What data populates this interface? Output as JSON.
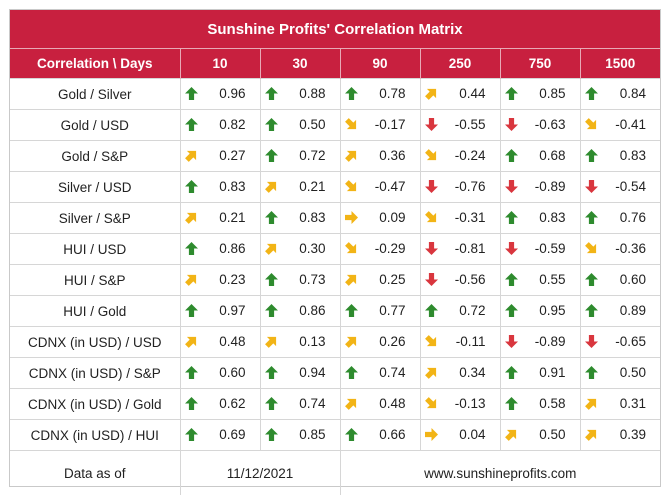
{
  "title": "Sunshine Profits' Correlation Matrix",
  "header": {
    "label": "Correlation \\ Days",
    "days": [
      "10",
      "30",
      "90",
      "250",
      "750",
      "1500"
    ]
  },
  "rows": [
    {
      "pair": "Gold / Silver",
      "cells": [
        {
          "dir": "up",
          "value": "0.96"
        },
        {
          "dir": "up",
          "value": "0.88"
        },
        {
          "dir": "up",
          "value": "0.78"
        },
        {
          "dir": "upright",
          "value": "0.44"
        },
        {
          "dir": "up",
          "value": "0.85"
        },
        {
          "dir": "up",
          "value": "0.84"
        }
      ]
    },
    {
      "pair": "Gold / USD",
      "cells": [
        {
          "dir": "up",
          "value": "0.82"
        },
        {
          "dir": "up",
          "value": "0.50"
        },
        {
          "dir": "downright",
          "value": "-0.17"
        },
        {
          "dir": "down",
          "value": "-0.55"
        },
        {
          "dir": "down",
          "value": "-0.63"
        },
        {
          "dir": "downright",
          "value": "-0.41"
        }
      ]
    },
    {
      "pair": "Gold / S&P",
      "cells": [
        {
          "dir": "upright",
          "value": "0.27"
        },
        {
          "dir": "up",
          "value": "0.72"
        },
        {
          "dir": "upright",
          "value": "0.36"
        },
        {
          "dir": "downright",
          "value": "-0.24"
        },
        {
          "dir": "up",
          "value": "0.68"
        },
        {
          "dir": "up",
          "value": "0.83"
        }
      ]
    },
    {
      "pair": "Silver / USD",
      "cells": [
        {
          "dir": "up",
          "value": "0.83"
        },
        {
          "dir": "upright",
          "value": "0.21"
        },
        {
          "dir": "downright",
          "value": "-0.47"
        },
        {
          "dir": "down",
          "value": "-0.76"
        },
        {
          "dir": "down",
          "value": "-0.89"
        },
        {
          "dir": "down",
          "value": "-0.54"
        }
      ]
    },
    {
      "pair": "Silver / S&P",
      "cells": [
        {
          "dir": "upright",
          "value": "0.21"
        },
        {
          "dir": "up",
          "value": "0.83"
        },
        {
          "dir": "right",
          "value": "0.09"
        },
        {
          "dir": "downright",
          "value": "-0.31"
        },
        {
          "dir": "up",
          "value": "0.83"
        },
        {
          "dir": "up",
          "value": "0.76"
        }
      ]
    },
    {
      "pair": "HUI / USD",
      "cells": [
        {
          "dir": "up",
          "value": "0.86"
        },
        {
          "dir": "upright",
          "value": "0.30"
        },
        {
          "dir": "downright",
          "value": "-0.29"
        },
        {
          "dir": "down",
          "value": "-0.81"
        },
        {
          "dir": "down",
          "value": "-0.59"
        },
        {
          "dir": "downright",
          "value": "-0.36"
        }
      ]
    },
    {
      "pair": "HUI / S&P",
      "cells": [
        {
          "dir": "upright",
          "value": "0.23"
        },
        {
          "dir": "up",
          "value": "0.73"
        },
        {
          "dir": "upright",
          "value": "0.25"
        },
        {
          "dir": "down",
          "value": "-0.56"
        },
        {
          "dir": "up",
          "value": "0.55"
        },
        {
          "dir": "up",
          "value": "0.60"
        }
      ]
    },
    {
      "pair": "HUI / Gold",
      "cells": [
        {
          "dir": "up",
          "value": "0.97"
        },
        {
          "dir": "up",
          "value": "0.86"
        },
        {
          "dir": "up",
          "value": "0.77"
        },
        {
          "dir": "up",
          "value": "0.72"
        },
        {
          "dir": "up",
          "value": "0.95"
        },
        {
          "dir": "up",
          "value": "0.89"
        }
      ]
    },
    {
      "pair": "CDNX (in USD) / USD",
      "cells": [
        {
          "dir": "upright",
          "value": "0.48"
        },
        {
          "dir": "upright",
          "value": "0.13"
        },
        {
          "dir": "upright",
          "value": "0.26"
        },
        {
          "dir": "downright",
          "value": "-0.11"
        },
        {
          "dir": "down",
          "value": "-0.89"
        },
        {
          "dir": "down",
          "value": "-0.65"
        }
      ]
    },
    {
      "pair": "CDNX (in USD) / S&P",
      "cells": [
        {
          "dir": "up",
          "value": "0.60"
        },
        {
          "dir": "up",
          "value": "0.94"
        },
        {
          "dir": "up",
          "value": "0.74"
        },
        {
          "dir": "upright",
          "value": "0.34"
        },
        {
          "dir": "up",
          "value": "0.91"
        },
        {
          "dir": "up",
          "value": "0.50"
        }
      ]
    },
    {
      "pair": "CDNX (in USD) / Gold",
      "cells": [
        {
          "dir": "up",
          "value": "0.62"
        },
        {
          "dir": "up",
          "value": "0.74"
        },
        {
          "dir": "upright",
          "value": "0.48"
        },
        {
          "dir": "downright",
          "value": "-0.13"
        },
        {
          "dir": "up",
          "value": "0.58"
        },
        {
          "dir": "upright",
          "value": "0.31"
        }
      ]
    },
    {
      "pair": "CDNX (in USD) / HUI",
      "cells": [
        {
          "dir": "up",
          "value": "0.69"
        },
        {
          "dir": "up",
          "value": "0.85"
        },
        {
          "dir": "up",
          "value": "0.66"
        },
        {
          "dir": "right",
          "value": "0.04"
        },
        {
          "dir": "upright",
          "value": "0.50"
        },
        {
          "dir": "upright",
          "value": "0.39"
        }
      ]
    }
  ],
  "footer": {
    "label": "Data as of",
    "date": "11/12/2021",
    "site": "www.sunshineprofits.com"
  },
  "icon_names": {
    "up": "up-arrow-icon",
    "upright": "up-right-arrow-icon",
    "right": "right-arrow-icon",
    "downright": "down-right-arrow-icon",
    "down": "down-arrow-icon"
  },
  "colors": {
    "header_bg": "#c8203f",
    "arrow_green": "#2e8b2e",
    "arrow_yellow": "#f2b416",
    "arrow_red": "#d9363e"
  }
}
